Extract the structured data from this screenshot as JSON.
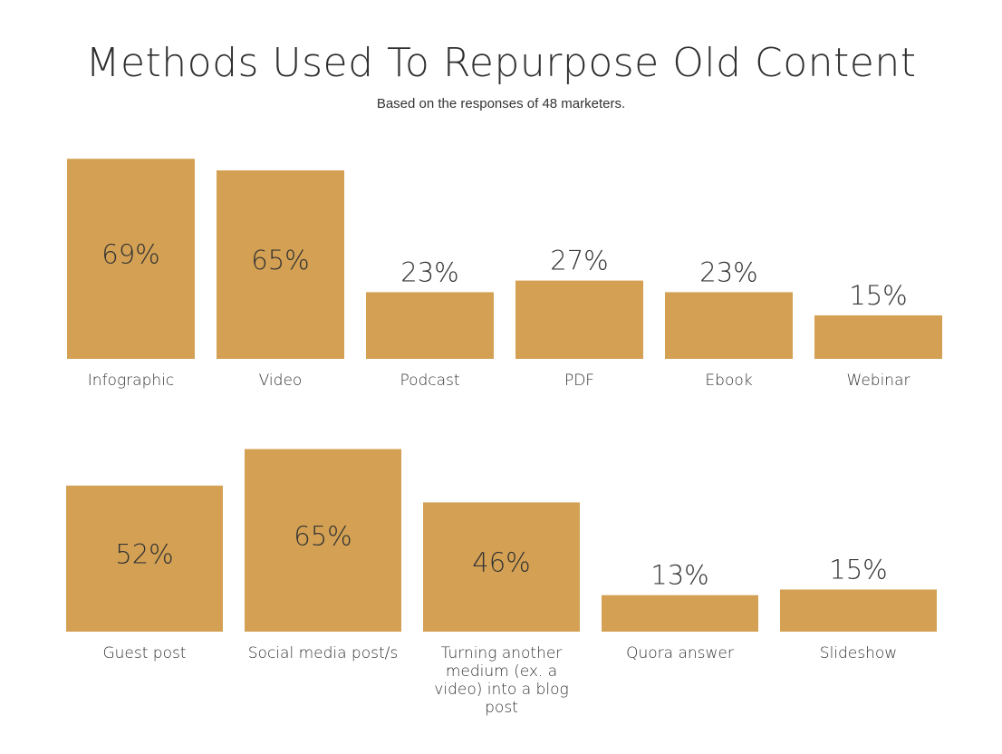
{
  "colors": {
    "bar": "#d4a154",
    "text": "#333333"
  },
  "title": "Methods Used To Repurpose Old Content",
  "subtitle": "Based on the responses of 48 marketers.",
  "chart_data": [
    {
      "type": "bar",
      "categories": [
        "Infographic",
        "Video",
        "Podcast",
        "PDF",
        "Ebook",
        "Webinar"
      ],
      "values": [
        69,
        65,
        23,
        27,
        23,
        15
      ],
      "value_labels": [
        "69%",
        "65%",
        "23%",
        "27%",
        "23%",
        "15%"
      ],
      "title": "",
      "xlabel": "",
      "ylabel": "",
      "unit": "%",
      "grid": false
    },
    {
      "type": "bar",
      "categories": [
        [
          "Guest post"
        ],
        [
          "Social media post/s"
        ],
        [
          "Turning another",
          "medium (ex. a",
          "video) into a blog",
          "post"
        ],
        [
          "Quora answer"
        ],
        [
          "Slideshow"
        ]
      ],
      "values": [
        52,
        65,
        46,
        13,
        15
      ],
      "value_labels": [
        "52%",
        "65%",
        "46%",
        "13%",
        "15%"
      ],
      "title": "",
      "xlabel": "",
      "ylabel": "",
      "unit": "%",
      "grid": false
    }
  ]
}
